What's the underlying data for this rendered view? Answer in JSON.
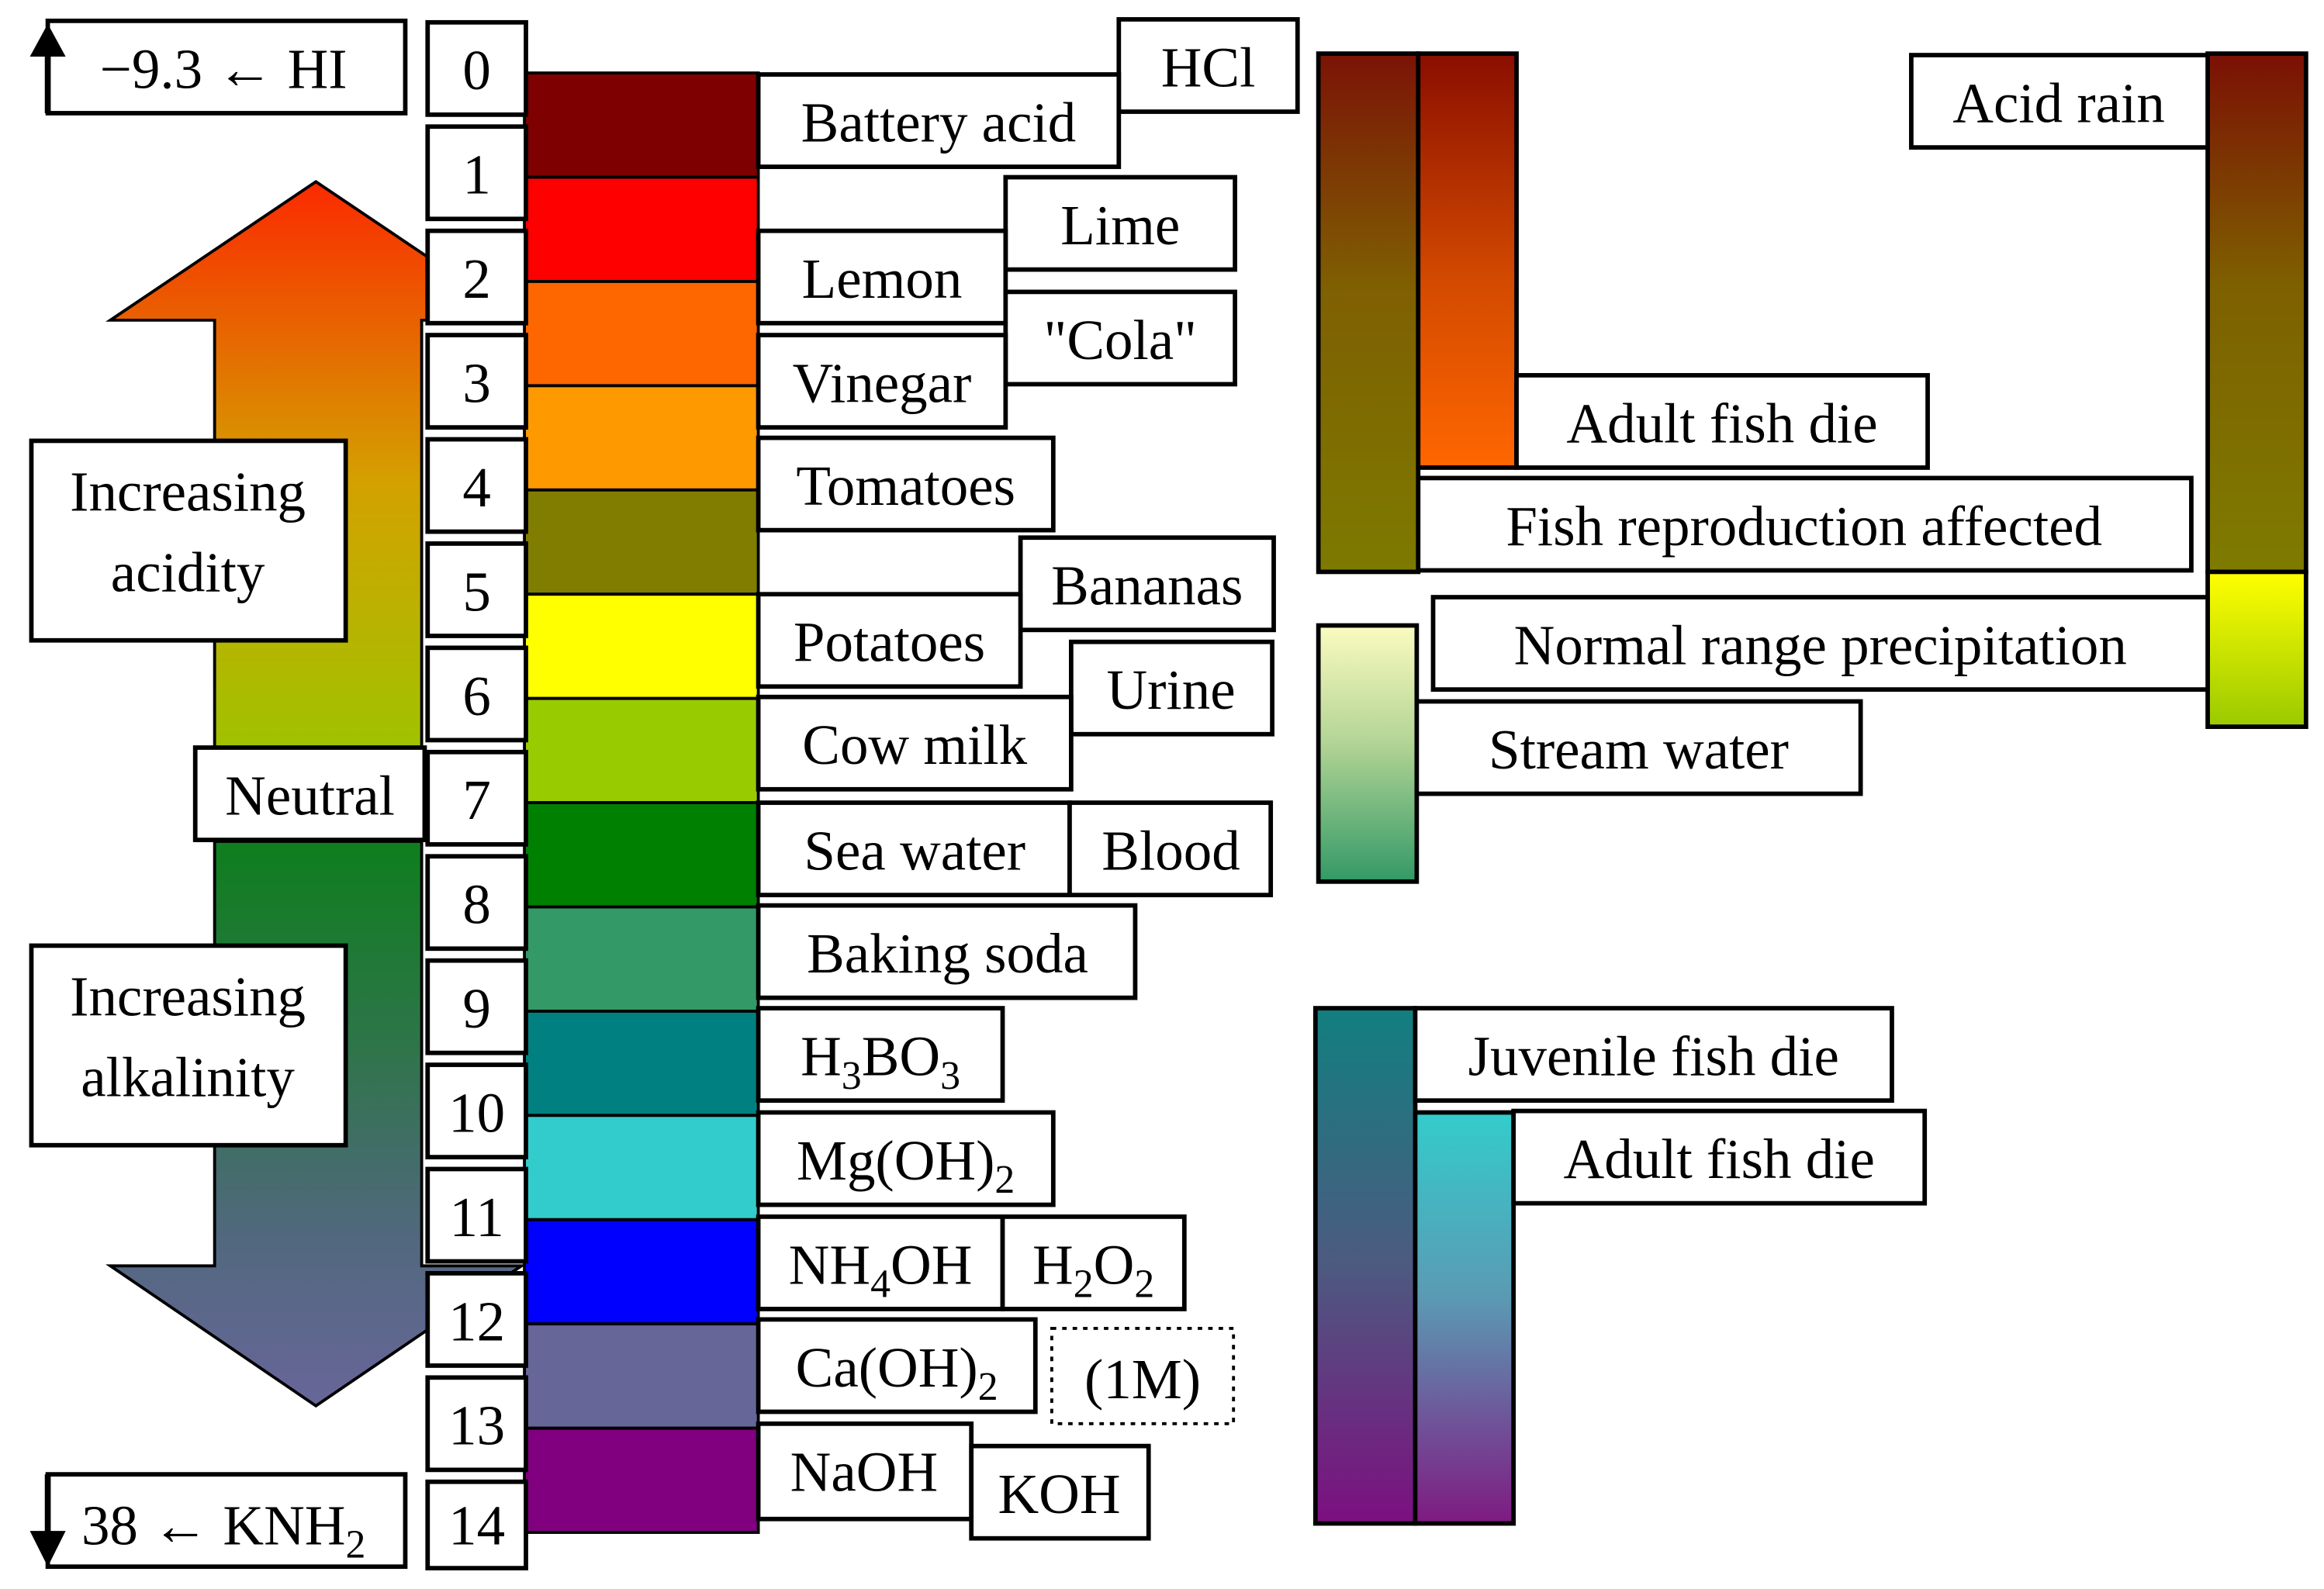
{
  "colors": {
    "ph_0": "#7f0000",
    "ph_1": "#fe0000",
    "ph_2": "#fe6600",
    "ph_3": "#ff9900",
    "ph_4": "#807d00",
    "ph_5": "#ffff00",
    "ph_6": "#99cc00",
    "ph_7": "#008000",
    "ph_8": "#339966",
    "ph_9": "#008080",
    "ph_10": "#33cccc",
    "ph_11": "#0000ff",
    "ph_12": "#666699",
    "ph_13": "#800080",
    "stroke": "#000000",
    "background": "#ffffff"
  },
  "scale": {
    "numbers": [
      "0",
      "1",
      "2",
      "3",
      "4",
      "5",
      "6",
      "7",
      "8",
      "9",
      "10",
      "11",
      "12",
      "13",
      "14"
    ]
  },
  "extremes": {
    "top": {
      "value": "−9.3",
      "arrow": "←",
      "compound": "HI"
    },
    "bottom": {
      "value": "38",
      "arrow": "←",
      "compound": "KNH",
      "subscript": "2"
    }
  },
  "arrow_labels": {
    "acidity": [
      "Increasing",
      "acidity"
    ],
    "neutral": "Neutral",
    "alkalinity": [
      "Increasing",
      "alkalinity"
    ]
  },
  "substances": {
    "hcl": "HCl",
    "battery_acid": "Battery acid",
    "lemon": "Lemon",
    "lime": "Lime",
    "cola": "\"Cola\"",
    "vinegar": "Vinegar",
    "tomatoes": "Tomatoes",
    "bananas": "Bananas",
    "potatoes": "Potatoes",
    "urine": "Urine",
    "cow_milk": "Cow milk",
    "sea_water": "Sea water",
    "blood": "Blood",
    "baking_soda": "Baking soda",
    "boric_acid": {
      "p1": "H",
      "s1": "3",
      "p2": "BO",
      "s2": "3"
    },
    "magnesium_hydroxide": {
      "p1": "Mg(OH)",
      "s1": "2"
    },
    "ammonium_hydroxide": {
      "p1": "NH",
      "s1": "4",
      "p2": "OH"
    },
    "hydrogen_peroxide": {
      "p1": "H",
      "s1": "2",
      "p2": "O",
      "s2": "2"
    },
    "calcium_hydroxide": {
      "p1": "Ca(OH)",
      "s1": "2"
    },
    "one_molar": "(1M)",
    "naoh": "NaOH",
    "koh": "KOH"
  },
  "environment": {
    "adult_fish_die_acid": "Adult fish die",
    "fish_reproduction": "Fish reproduction affected",
    "acid_rain": "Acid rain",
    "normal_precipitation": "Normal range precipitation",
    "stream_water": "Stream water",
    "juvenile_fish_die": "Juvenile fish die",
    "adult_fish_die_alkaline": "Adult fish die"
  }
}
